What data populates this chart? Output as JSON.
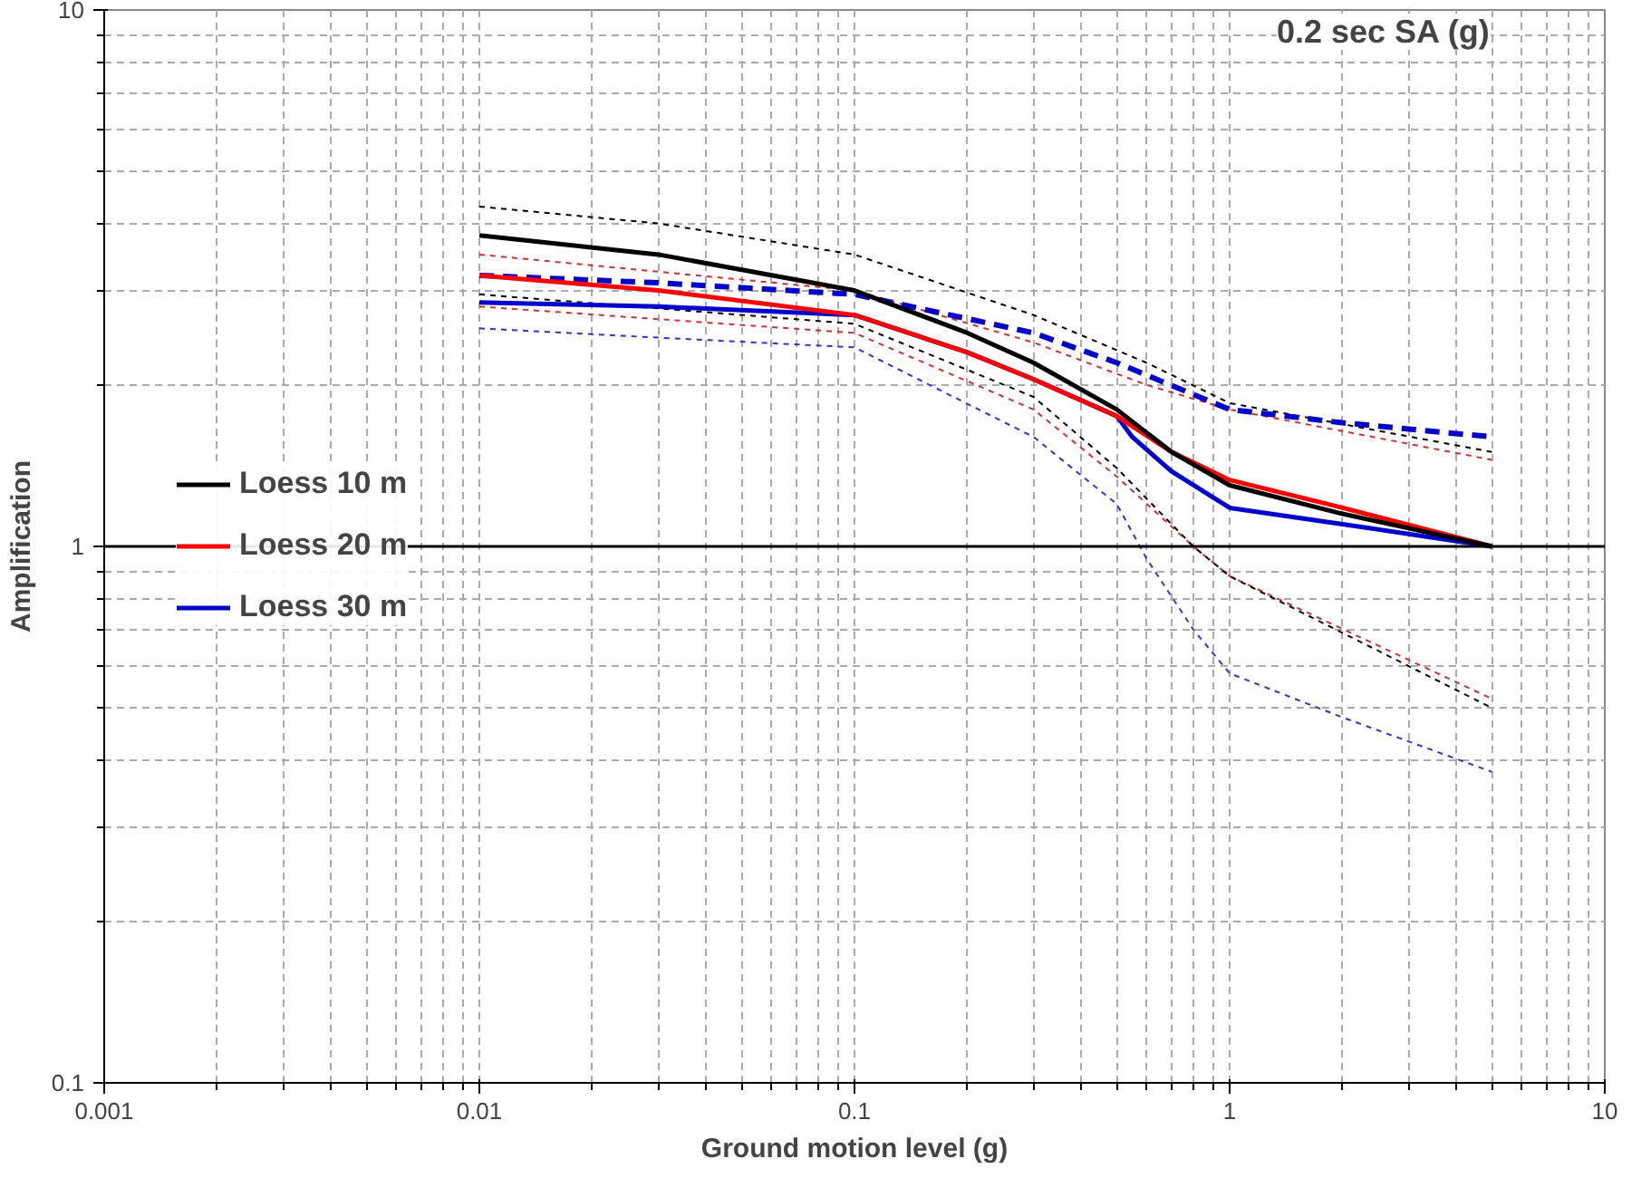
{
  "chart_data": {
    "type": "line",
    "title": "0.2 sec SA (g)",
    "xlabel": "Ground motion level (g)",
    "ylabel": "Amplification",
    "log": "xy",
    "xlim": [
      0.001,
      10
    ],
    "ylim": [
      0.1,
      10
    ],
    "xticks": [
      0.001,
      0.01,
      0.1,
      1,
      10
    ],
    "yticks": [
      0.1,
      1,
      10
    ],
    "grid": true,
    "legend": "left",
    "ref_lines": [
      {
        "axis": "y",
        "value": 1,
        "color": "#000000",
        "line_style": "solid"
      }
    ],
    "series": [
      {
        "name": "Loess 10 m",
        "color": "#000000",
        "line_style": "solid",
        "x": [
          0.01,
          0.03,
          0.1,
          0.2,
          0.3,
          0.5,
          0.7,
          1,
          2,
          5
        ],
        "values": [
          3.8,
          3.5,
          3.0,
          2.5,
          2.2,
          1.8,
          1.5,
          1.3,
          1.15,
          1.0
        ]
      },
      {
        "name": "Loess 20 m",
        "color": "#ff0000",
        "line_style": "solid",
        "x": [
          0.01,
          0.03,
          0.1,
          0.2,
          0.3,
          0.5,
          0.7,
          1,
          2,
          5
        ],
        "values": [
          3.2,
          3.0,
          2.7,
          2.3,
          2.05,
          1.75,
          1.5,
          1.33,
          1.18,
          1.0
        ]
      },
      {
        "name": "Loess 30 m",
        "color": "#0000cc",
        "line_style": "solid",
        "x": [
          0.01,
          0.03,
          0.1,
          0.2,
          0.3,
          0.5,
          0.55,
          0.7,
          1,
          2,
          5
        ],
        "values": [
          2.85,
          2.8,
          2.7,
          2.3,
          2.05,
          1.75,
          1.6,
          1.38,
          1.18,
          1.1,
          1.0
        ]
      },
      {
        "color": "#0000cc",
        "line_style": "dashed",
        "x": [
          0.01,
          0.03,
          0.1,
          0.3,
          0.5,
          1,
          2,
          5
        ],
        "values": [
          3.2,
          3.1,
          2.95,
          2.5,
          2.2,
          1.8,
          1.7,
          1.6
        ]
      },
      {
        "color": "#000000",
        "line_style": "dotted",
        "x": [
          0.01,
          0.03,
          0.1,
          0.3,
          0.6,
          1,
          5
        ],
        "values": [
          4.3,
          4.0,
          3.5,
          2.7,
          2.2,
          1.85,
          1.5
        ]
      },
      {
        "color": "#cc3333",
        "line_style": "dotted",
        "x": [
          0.01,
          0.1,
          0.3,
          0.6,
          1,
          5
        ],
        "values": [
          3.5,
          3.0,
          2.4,
          2.0,
          1.8,
          1.45
        ]
      },
      {
        "color": "#000000",
        "line_style": "dotted",
        "x": [
          0.01,
          0.1,
          0.3,
          0.5,
          0.8,
          1,
          5
        ],
        "values": [
          2.95,
          2.6,
          1.9,
          1.4,
          1.0,
          0.88,
          0.5
        ]
      },
      {
        "color": "#cc3333",
        "line_style": "dotted",
        "x": [
          0.01,
          0.1,
          0.3,
          0.5,
          0.8,
          1,
          5
        ],
        "values": [
          2.8,
          2.5,
          1.8,
          1.35,
          1.0,
          0.88,
          0.52
        ]
      },
      {
        "color": "#3333cc",
        "line_style": "dotted",
        "x": [
          0.01,
          0.03,
          0.1,
          0.3,
          0.5,
          0.6,
          0.8,
          1,
          2,
          5
        ],
        "values": [
          2.55,
          2.45,
          2.35,
          1.6,
          1.2,
          0.95,
          0.7,
          0.58,
          0.48,
          0.38
        ]
      }
    ]
  }
}
